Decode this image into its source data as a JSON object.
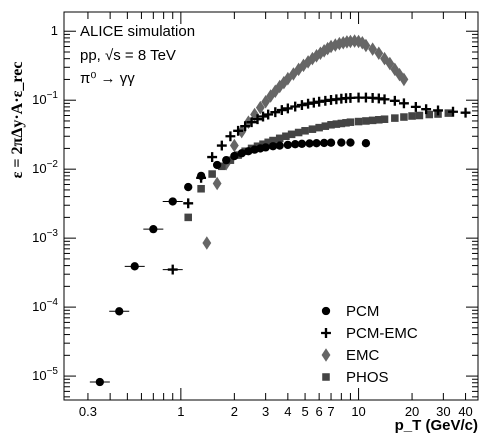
{
  "chart_data": {
    "type": "scatter",
    "title": "",
    "xlabel": "p_T (GeV/c)",
    "ylabel": "ε = 2πΔy·A·ε_rec",
    "x_log": true,
    "y_log": true,
    "xlim": [
      0.22,
      47
    ],
    "ylim": [
      4.5e-06,
      1.9
    ],
    "x_tick_labels": [
      "0.3",
      "1",
      "2",
      "3",
      "4",
      "5",
      "6",
      "7",
      "10",
      "20",
      "30",
      "40"
    ],
    "y_tick_labels": [
      "10^-5",
      "10^-4",
      "10^-3",
      "10^-2",
      "10^-1",
      "1"
    ],
    "annotations": {
      "line1": "ALICE simulation",
      "line2": "pp, √s = 8 TeV",
      "line3": "π⁰ → γγ"
    },
    "legend_position": "bottom-right",
    "series": [
      {
        "name": "PCM",
        "marker": "circle",
        "color": "#000000",
        "points": [
          [
            0.35,
            8.2e-06
          ],
          [
            0.45,
            8.7e-05
          ],
          [
            0.55,
            0.00039
          ],
          [
            0.7,
            0.00135
          ],
          [
            0.9,
            0.0034
          ],
          [
            1.1,
            0.0055
          ],
          [
            1.3,
            0.008
          ],
          [
            1.6,
            0.0115
          ],
          [
            1.8,
            0.0135
          ],
          [
            2.0,
            0.0155
          ],
          [
            2.2,
            0.017
          ],
          [
            2.4,
            0.0182
          ],
          [
            2.6,
            0.0192
          ],
          [
            2.8,
            0.02
          ],
          [
            3.0,
            0.0207
          ],
          [
            3.3,
            0.0215
          ],
          [
            3.6,
            0.022
          ],
          [
            4.0,
            0.0225
          ],
          [
            4.4,
            0.023
          ],
          [
            4.8,
            0.0233
          ],
          [
            5.3,
            0.0236
          ],
          [
            5.8,
            0.0238
          ],
          [
            6.4,
            0.024
          ],
          [
            7.0,
            0.0242
          ],
          [
            8.0,
            0.0243
          ],
          [
            9.0,
            0.0243
          ],
          [
            11.0,
            0.0238
          ]
        ]
      },
      {
        "name": "PCM-EMC",
        "marker": "cross",
        "color": "#000000",
        "points": [
          [
            0.9,
            0.00035
          ],
          [
            1.1,
            0.0032
          ],
          [
            1.3,
            0.0075
          ],
          [
            1.5,
            0.015
          ],
          [
            1.7,
            0.022
          ],
          [
            1.9,
            0.03
          ],
          [
            2.1,
            0.036
          ],
          [
            2.3,
            0.042
          ],
          [
            2.5,
            0.048
          ],
          [
            2.7,
            0.053
          ],
          [
            2.9,
            0.058
          ],
          [
            3.1,
            0.062
          ],
          [
            3.4,
            0.067
          ],
          [
            3.7,
            0.072
          ],
          [
            4.0,
            0.076
          ],
          [
            4.4,
            0.081
          ],
          [
            4.8,
            0.085
          ],
          [
            5.2,
            0.089
          ],
          [
            5.6,
            0.092
          ],
          [
            6.0,
            0.095
          ],
          [
            6.5,
            0.098
          ],
          [
            7.0,
            0.101
          ],
          [
            7.5,
            0.103
          ],
          [
            8.0,
            0.105
          ],
          [
            8.5,
            0.107
          ],
          [
            9.0,
            0.108
          ],
          [
            10.0,
            0.109
          ],
          [
            11.0,
            0.109
          ],
          [
            12.0,
            0.108
          ],
          [
            13.0,
            0.106
          ],
          [
            14.0,
            0.103
          ],
          [
            16.0,
            0.098
          ],
          [
            18.0,
            0.09
          ],
          [
            21.0,
            0.08
          ],
          [
            24.0,
            0.074
          ],
          [
            28.0,
            0.071
          ],
          [
            34.0,
            0.068
          ],
          [
            40.0,
            0.066
          ]
        ]
      },
      {
        "name": "EMC",
        "marker": "diamond",
        "color": "#666666",
        "points": [
          [
            1.4,
            0.00085
          ],
          [
            1.6,
            0.0062
          ],
          [
            1.8,
            0.012
          ],
          [
            2.0,
            0.022
          ],
          [
            2.2,
            0.035
          ],
          [
            2.4,
            0.048
          ],
          [
            2.6,
            0.062
          ],
          [
            2.8,
            0.078
          ],
          [
            3.0,
            0.095
          ],
          [
            3.2,
            0.115
          ],
          [
            3.4,
            0.135
          ],
          [
            3.6,
            0.158
          ],
          [
            3.8,
            0.18
          ],
          [
            4.0,
            0.205
          ],
          [
            4.3,
            0.24
          ],
          [
            4.6,
            0.28
          ],
          [
            4.9,
            0.32
          ],
          [
            5.2,
            0.36
          ],
          [
            5.5,
            0.4
          ],
          [
            5.8,
            0.44
          ],
          [
            6.1,
            0.48
          ],
          [
            6.4,
            0.52
          ],
          [
            6.7,
            0.56
          ],
          [
            7.0,
            0.6
          ],
          [
            7.4,
            0.63
          ],
          [
            7.8,
            0.66
          ],
          [
            8.2,
            0.68
          ],
          [
            8.6,
            0.7
          ],
          [
            9.0,
            0.71
          ],
          [
            9.5,
            0.72
          ],
          [
            10.0,
            0.71
          ],
          [
            10.5,
            0.68
          ],
          [
            11.0,
            0.62
          ],
          [
            12.0,
            0.55
          ],
          [
            13.0,
            0.48
          ],
          [
            14.0,
            0.4
          ],
          [
            15.0,
            0.34
          ],
          [
            16.0,
            0.28
          ],
          [
            17.0,
            0.235
          ],
          [
            18.0,
            0.2
          ]
        ]
      },
      {
        "name": "PHOS",
        "marker": "square",
        "color": "#444444",
        "points": [
          [
            1.1,
            0.002
          ],
          [
            1.3,
            0.0052
          ],
          [
            1.5,
            0.0085
          ],
          [
            1.7,
            0.011
          ],
          [
            1.9,
            0.0135
          ],
          [
            2.1,
            0.016
          ],
          [
            2.3,
            0.0182
          ],
          [
            2.5,
            0.02
          ],
          [
            2.7,
            0.0215
          ],
          [
            2.9,
            0.023
          ],
          [
            3.1,
            0.0245
          ],
          [
            3.3,
            0.026
          ],
          [
            3.6,
            0.028
          ],
          [
            3.9,
            0.03
          ],
          [
            4.2,
            0.032
          ],
          [
            4.6,
            0.034
          ],
          [
            5.0,
            0.036
          ],
          [
            5.5,
            0.038
          ],
          [
            6.0,
            0.04
          ],
          [
            6.5,
            0.042
          ],
          [
            7.0,
            0.044
          ],
          [
            7.5,
            0.045
          ],
          [
            8.0,
            0.046
          ],
          [
            8.5,
            0.047
          ],
          [
            9.0,
            0.048
          ],
          [
            10.0,
            0.049
          ],
          [
            11.0,
            0.05
          ],
          [
            12.0,
            0.051
          ],
          [
            13.0,
            0.052
          ],
          [
            14.0,
            0.053
          ],
          [
            16.0,
            0.055
          ],
          [
            18.0,
            0.057
          ],
          [
            20.0,
            0.059
          ],
          [
            22.0,
            0.06
          ],
          [
            25.0,
            0.062
          ],
          [
            28.0,
            0.063
          ],
          [
            32.0,
            0.065
          ]
        ]
      }
    ]
  }
}
